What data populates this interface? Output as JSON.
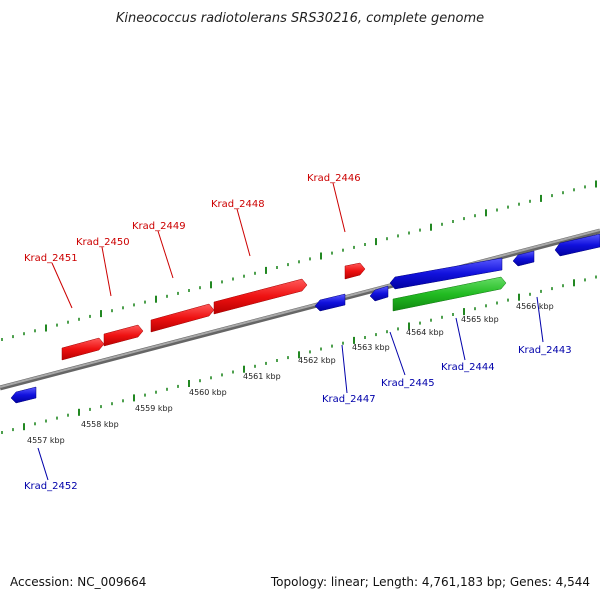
{
  "title": "Kineococcus radiotolerans SRS30216, complete genome",
  "footer": {
    "accession": "Accession: NC_009664",
    "summary": "Topology: linear; Length: 4,761,183 bp; Genes: 4,544"
  },
  "colors": {
    "forward_gene": "#ee1111",
    "reverse_gene": "#1111dd",
    "highlight_gene": "#22bb22",
    "backbone": "#808080",
    "ticks": "#228822"
  },
  "scale": {
    "unit": "kbp",
    "labels": [
      "4557 kbp",
      "4558 kbp",
      "4559 kbp",
      "4560 kbp",
      "4561 kbp",
      "4562 kbp",
      "4563 kbp",
      "4564 kbp",
      "4565 kbp",
      "4566 kbp"
    ]
  },
  "genes": [
    {
      "name": "Krad_2452",
      "strand": "reverse"
    },
    {
      "name": "Krad_2451",
      "strand": "forward"
    },
    {
      "name": "Krad_2450",
      "strand": "forward"
    },
    {
      "name": "Krad_2449",
      "strand": "forward"
    },
    {
      "name": "Krad_2448",
      "strand": "forward"
    },
    {
      "name": "Krad_2447",
      "strand": "reverse"
    },
    {
      "name": "Krad_2446",
      "strand": "forward"
    },
    {
      "name": "Krad_2445",
      "strand": "reverse"
    },
    {
      "name": "Krad_2444",
      "strand": "forward",
      "highlighted": true
    },
    {
      "name": "Krad_2443",
      "strand": "reverse"
    }
  ]
}
